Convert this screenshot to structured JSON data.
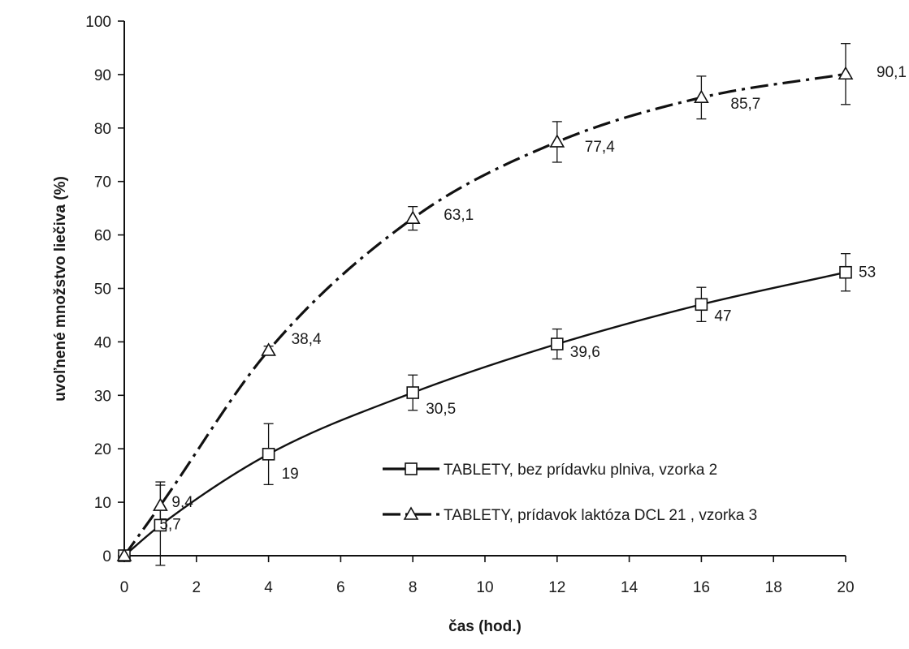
{
  "chart_data": {
    "type": "line",
    "title": "",
    "xlabel": "čas (hod.)",
    "ylabel": "uvoľnené množstvo liečiva (%)",
    "xlim": [
      0,
      20
    ],
    "ylim": [
      0,
      100
    ],
    "x_ticks": [
      0,
      2,
      4,
      6,
      8,
      10,
      12,
      14,
      16,
      18,
      20
    ],
    "y_ticks": [
      0,
      10,
      20,
      30,
      40,
      50,
      60,
      70,
      80,
      90,
      100
    ],
    "grid": false,
    "legend_position": "bottom-right",
    "series": [
      {
        "name": "TABLETY, bez prídavku plniva, vzorka 2",
        "marker": "square",
        "line_style": "solid",
        "points": [
          {
            "x": 0,
            "y": 0,
            "label": "",
            "err": 0
          },
          {
            "x": 1,
            "y": 5.7,
            "label": "5,7",
            "err": 7.5
          },
          {
            "x": 4,
            "y": 19,
            "label": "19",
            "err": 5.7
          },
          {
            "x": 8,
            "y": 30.5,
            "label": "30,5",
            "err": 3.3
          },
          {
            "x": 12,
            "y": 39.6,
            "label": "39,6",
            "err": 2.8
          },
          {
            "x": 16,
            "y": 47,
            "label": "47",
            "err": 3.2
          },
          {
            "x": 20,
            "y": 53,
            "label": "53",
            "err": 3.5
          }
        ]
      },
      {
        "name": "TABLETY, prídavok laktóza DCL 21 , vzorka 3",
        "marker": "triangle",
        "line_style": "dash-dot",
        "points": [
          {
            "x": 0,
            "y": 0,
            "label": "",
            "err": 0
          },
          {
            "x": 1,
            "y": 9.4,
            "label": "9,4",
            "err": 4.4
          },
          {
            "x": 4,
            "y": 38.4,
            "label": "38,4",
            "err": 0.8
          },
          {
            "x": 8,
            "y": 63.1,
            "label": "63,1",
            "err": 2.2
          },
          {
            "x": 12,
            "y": 77.4,
            "label": "77,4",
            "err": 3.8
          },
          {
            "x": 16,
            "y": 85.7,
            "label": "85,7",
            "err": 4.0
          },
          {
            "x": 20,
            "y": 90.1,
            "label": "90,1",
            "err": 5.7
          }
        ]
      }
    ]
  }
}
